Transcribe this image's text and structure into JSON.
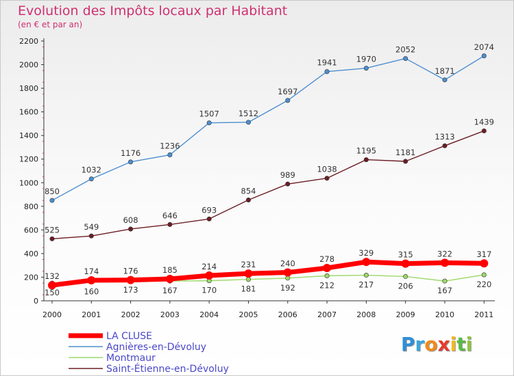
{
  "header": {
    "title": "Evolution des Impôts locaux par Habitant",
    "subtitle": "(en € et par an)"
  },
  "logo": {
    "text": "Proxiti"
  },
  "chart_data": {
    "type": "line",
    "title": "Evolution des Impôts locaux par Habitant",
    "subtitle": "(en € et par an)",
    "xlabel": "",
    "ylabel": "",
    "x": [
      "2000",
      "2001",
      "2002",
      "2003",
      "2004",
      "2005",
      "2006",
      "2007",
      "2008",
      "2009",
      "2010",
      "2011"
    ],
    "ylim": [
      0,
      2200
    ],
    "yticks": [
      0,
      200,
      400,
      600,
      800,
      1000,
      1200,
      1400,
      1600,
      1800,
      2000,
      2200
    ],
    "grid": false,
    "legend_position": "bottom-left",
    "series": [
      {
        "name": "LA CLUSE",
        "color": "#ff0000",
        "values": [
          132,
          174,
          176,
          185,
          214,
          231,
          240,
          278,
          329,
          315,
          322,
          317
        ]
      },
      {
        "name": "Agnières-en-Dévoluy",
        "color": "#4d8ed0",
        "values": [
          850,
          1032,
          1176,
          1236,
          1507,
          1512,
          1697,
          1941,
          1970,
          2052,
          1871,
          2074
        ]
      },
      {
        "name": "Montmaur",
        "color": "#9ed86a",
        "values": [
          150,
          160,
          173,
          167,
          170,
          181,
          192,
          212,
          217,
          206,
          167,
          220
        ]
      },
      {
        "name": "Saint-Étienne-en-Dévoluy",
        "color": "#6b1d24",
        "values": [
          525,
          549,
          608,
          646,
          693,
          854,
          989,
          1038,
          1195,
          1181,
          1313,
          1439
        ]
      }
    ]
  }
}
